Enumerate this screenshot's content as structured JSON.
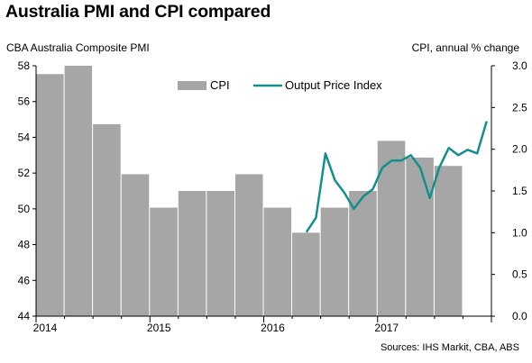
{
  "title": "Australia PMI and CPI compared",
  "chart_data": {
    "type": "bar+line",
    "title": "Australia PMI and CPI compared",
    "ylabel_left": "CBA Australia Composite PMI",
    "ylabel_right": "CPI, annual % change",
    "source": "Sources: IHS Markit, CBA, ABS",
    "x_ticks": [
      "2014",
      "2015",
      "2016",
      "2017"
    ],
    "y_left": {
      "min": 44,
      "max": 58,
      "ticks": [
        44,
        46,
        48,
        50,
        52,
        54,
        56,
        58
      ]
    },
    "y_right": {
      "min": 0,
      "max": 3,
      "ticks": [
        "0.0",
        "0.5",
        "1.0",
        "1.5",
        "2.0",
        "2.5",
        "3.0"
      ]
    },
    "legend": [
      {
        "name": "CPI",
        "kind": "bar",
        "color": "#a6a6a6"
      },
      {
        "name": "Output Price Index",
        "kind": "line",
        "color": "#13908c"
      }
    ],
    "cpi_bars": [
      {
        "quarter": "2014 Q1",
        "value": 2.9
      },
      {
        "quarter": "2014 Q2",
        "value": 3.0
      },
      {
        "quarter": "2014 Q3",
        "value": 2.3
      },
      {
        "quarter": "2014 Q4",
        "value": 1.7
      },
      {
        "quarter": "2015 Q1",
        "value": 1.3
      },
      {
        "quarter": "2015 Q2",
        "value": 1.5
      },
      {
        "quarter": "2015 Q3",
        "value": 1.5
      },
      {
        "quarter": "2015 Q4",
        "value": 1.7
      },
      {
        "quarter": "2016 Q1",
        "value": 1.3
      },
      {
        "quarter": "2016 Q2",
        "value": 1.0
      },
      {
        "quarter": "2016 Q3",
        "value": 1.3
      },
      {
        "quarter": "2016 Q4",
        "value": 1.5
      },
      {
        "quarter": "2017 Q1",
        "value": 2.1
      },
      {
        "quarter": "2017 Q2",
        "value": 1.9
      },
      {
        "quarter": "2017 Q3",
        "value": 1.8
      }
    ],
    "output_price_index": [
      {
        "date": "2016-05",
        "pmi": 48.7
      },
      {
        "date": "2016-06",
        "pmi": 49.5
      },
      {
        "date": "2016-07",
        "pmi": 53.1
      },
      {
        "date": "2016-08",
        "pmi": 51.6
      },
      {
        "date": "2016-09",
        "pmi": 50.9
      },
      {
        "date": "2016-10",
        "pmi": 50.0
      },
      {
        "date": "2016-11",
        "pmi": 50.7
      },
      {
        "date": "2016-12",
        "pmi": 51.1
      },
      {
        "date": "2017-01",
        "pmi": 52.3
      },
      {
        "date": "2017-02",
        "pmi": 52.7
      },
      {
        "date": "2017-03",
        "pmi": 52.7
      },
      {
        "date": "2017-04",
        "pmi": 53.0
      },
      {
        "date": "2017-05",
        "pmi": 52.3
      },
      {
        "date": "2017-06",
        "pmi": 50.6
      },
      {
        "date": "2017-07",
        "pmi": 52.3
      },
      {
        "date": "2017-08",
        "pmi": 53.4
      },
      {
        "date": "2017-09",
        "pmi": 53.0
      },
      {
        "date": "2017-10",
        "pmi": 53.3
      },
      {
        "date": "2017-11",
        "pmi": 53.1
      },
      {
        "date": "2017-12",
        "pmi": 54.9
      }
    ]
  }
}
